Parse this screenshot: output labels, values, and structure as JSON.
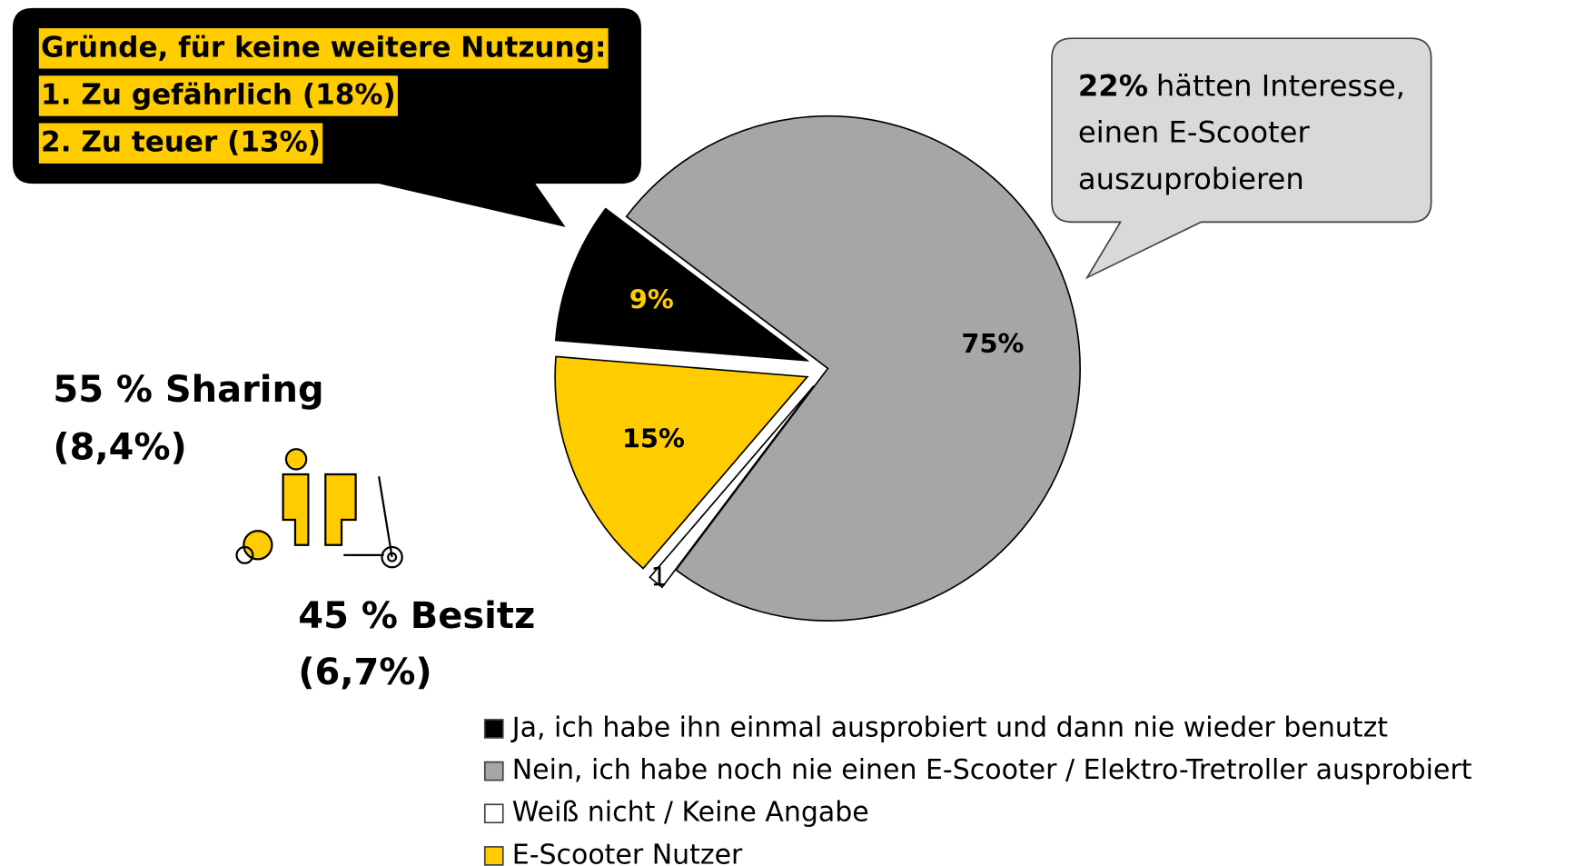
{
  "chart_data": {
    "type": "pie",
    "categories": [
      "Ja, ich habe ihn einmal ausprobiert und dann nie wieder benutzt",
      "Nein, ich habe noch nie einen E-Scooter / Elektro-Tretroller ausprobiert",
      "Weiß nicht / Keine Angabe",
      "E-Scooter Nutzer"
    ],
    "values": [
      9,
      75,
      1,
      15
    ],
    "value_labels": [
      "9%",
      "75%",
      "1",
      "15%"
    ],
    "colors": [
      "#000000",
      "#a6a6a6",
      "#ffffff",
      "#ffcc00"
    ],
    "label_colors": [
      "#ffcc00",
      "#000000",
      "#000000",
      "#000000"
    ]
  },
  "callout_left": {
    "lines": [
      "Gründe, für keine weitere Nutzung:",
      "1. Zu gefährlich (18%)",
      "2. Zu teuer (13%)"
    ]
  },
  "callout_right": {
    "bold": "22%",
    "lines": [
      "hätten Interesse,",
      "einen E-Scooter",
      "auszuprobieren"
    ]
  },
  "sharing": [
    "55 % Sharing",
    "(8,4%)"
  ],
  "besitz": [
    "45 % Besitz",
    "(6,7%)"
  ]
}
